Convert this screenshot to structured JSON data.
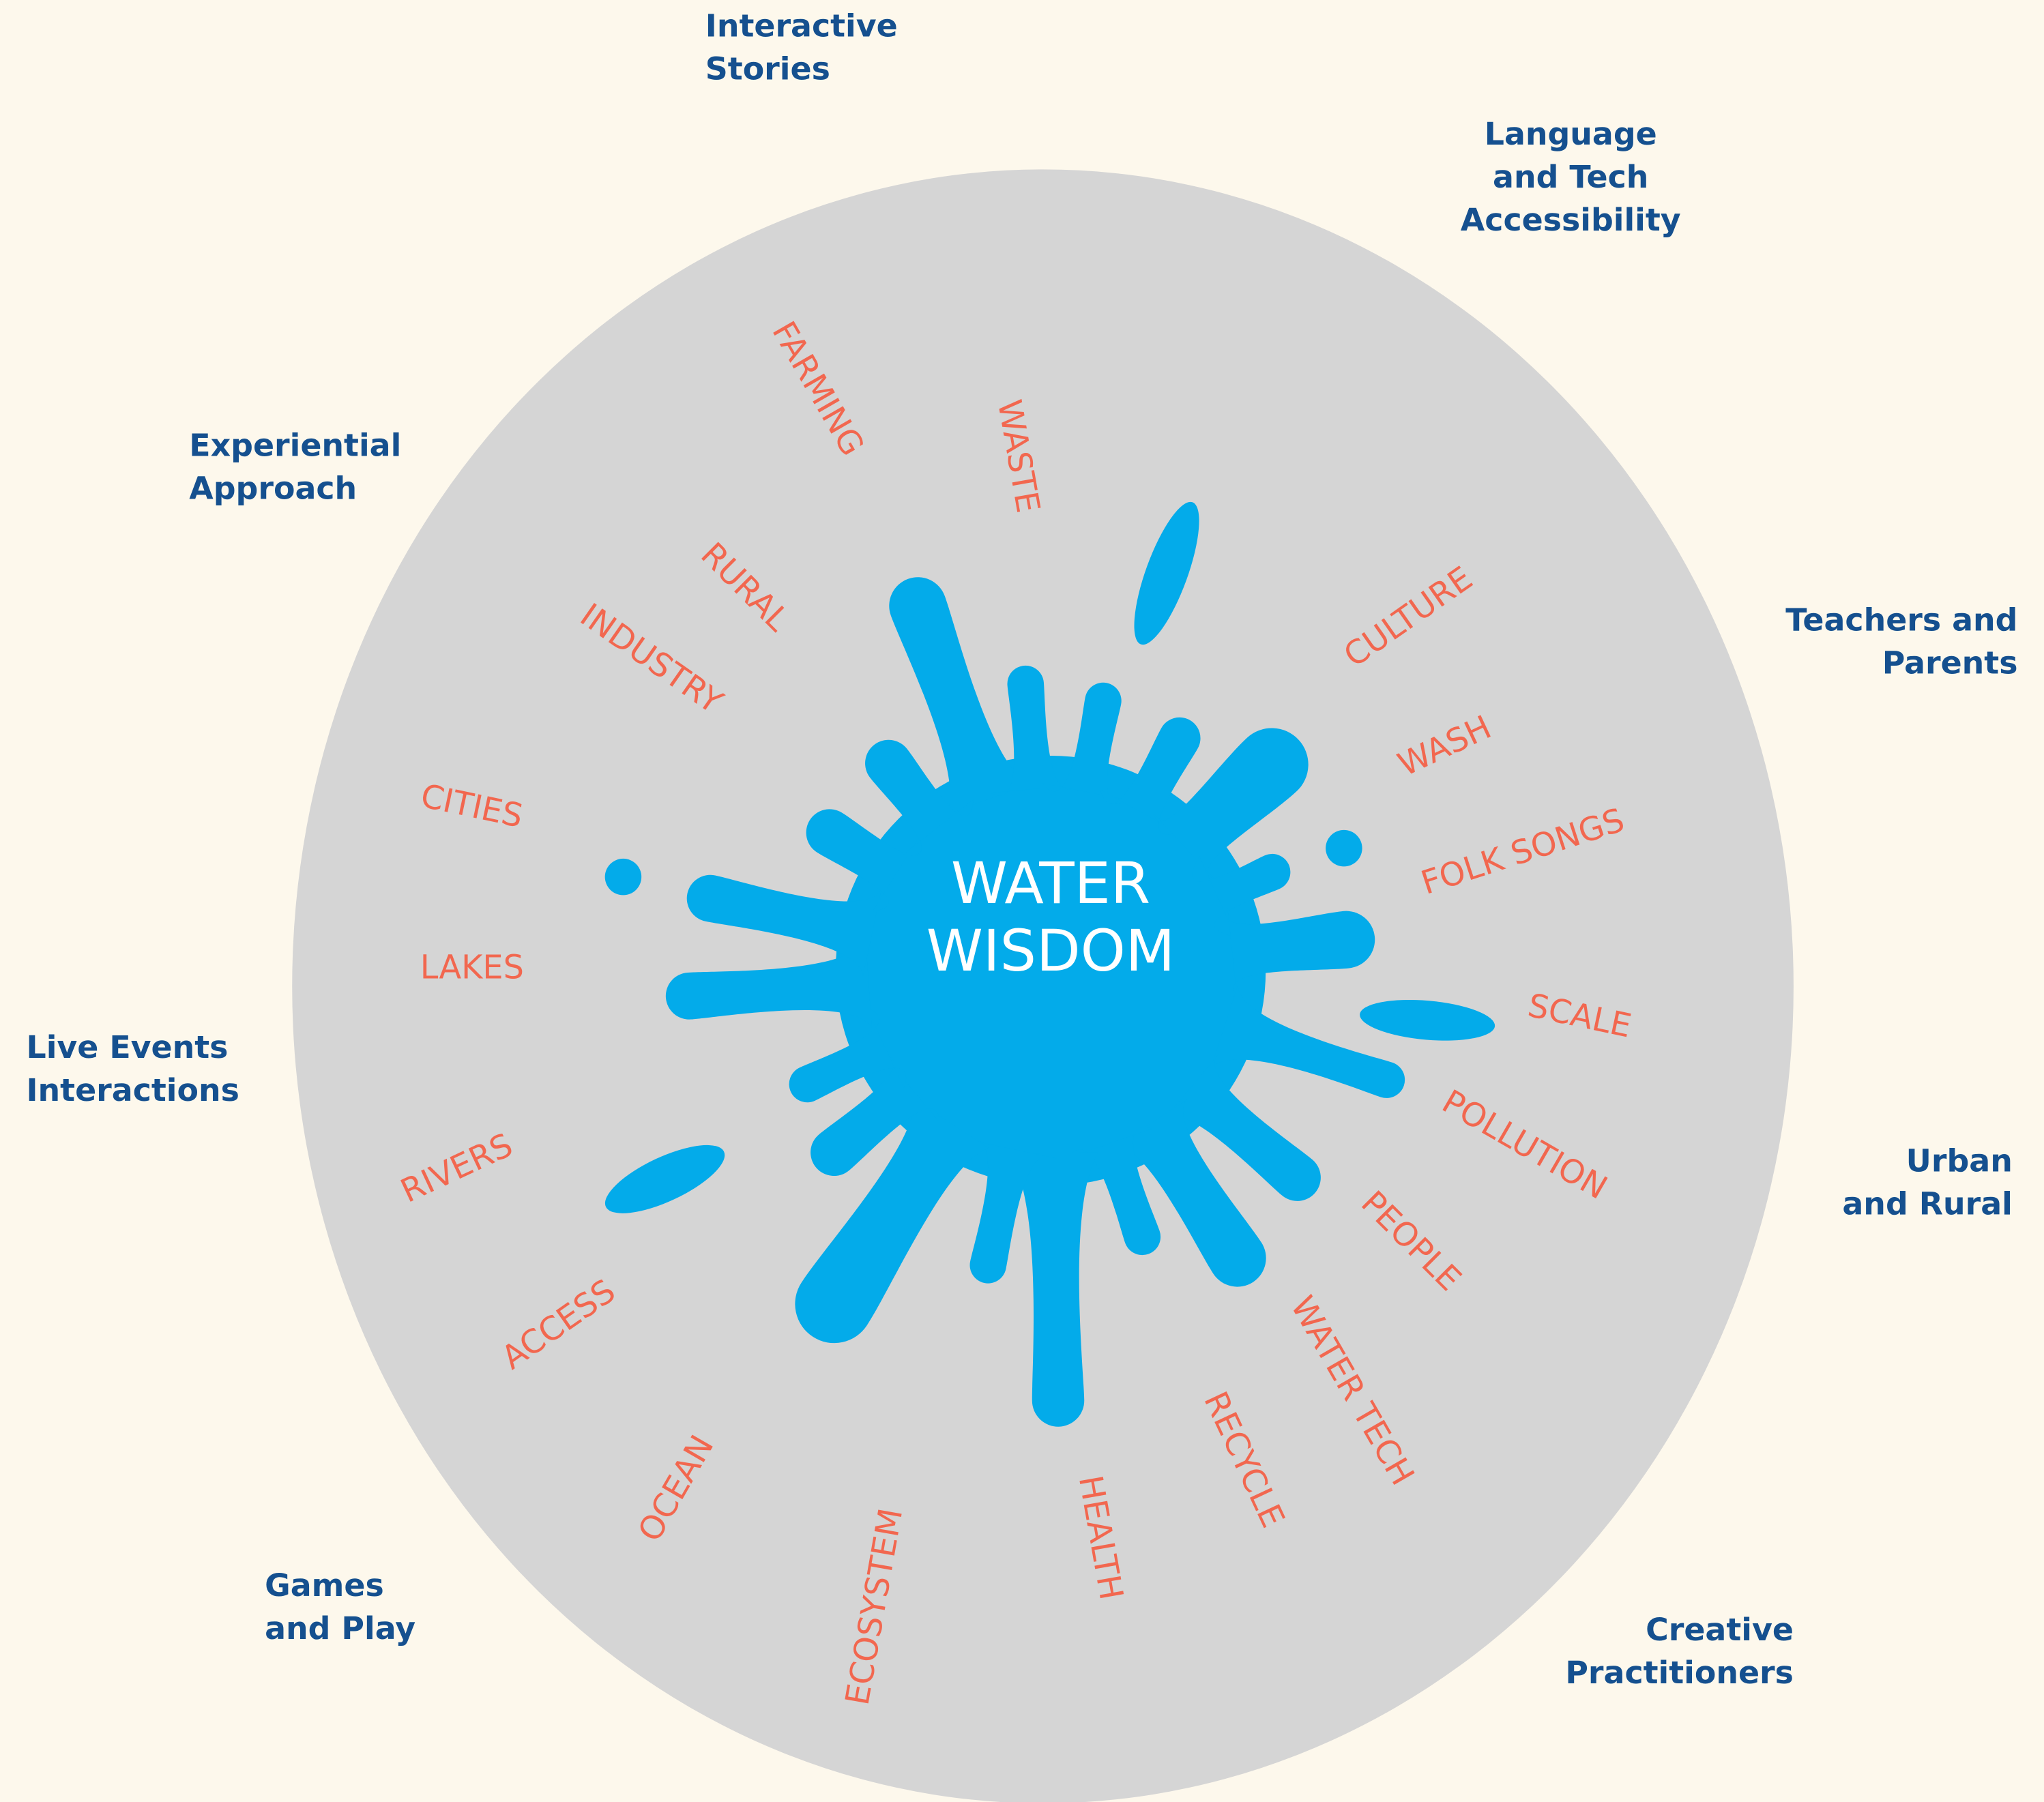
{
  "center": {
    "lines": [
      "WATER",
      "WISDOM"
    ]
  },
  "audiences": [
    {
      "lines": [
        "Interactive",
        "Stories"
      ]
    },
    {
      "lines": [
        "Language",
        "and Tech",
        "Accessibility"
      ]
    },
    {
      "lines": [
        "Experiential",
        "Approach"
      ]
    },
    {
      "lines": [
        "Teachers and",
        "Parents"
      ]
    },
    {
      "lines": [
        "Live Events",
        "Interactions"
      ]
    },
    {
      "lines": [
        "Urban",
        "and Rural"
      ]
    },
    {
      "lines": [
        "Games",
        "and Play"
      ]
    },
    {
      "lines": [
        "Creative",
        "Practitioners"
      ]
    }
  ],
  "topics": [
    "FARMING",
    "WASTE",
    "RURAL",
    "INDUSTRY",
    "CULTURE",
    "WASH",
    "FOLK SONGS",
    "CITIES",
    "LAKES",
    "SCALE",
    "POLLUTION",
    "RIVERS",
    "PEOPLE",
    "ACCESS",
    "WATER TECH",
    "OCEAN",
    "RECYCLE",
    "HEALTH",
    "ECOSYSTEM"
  ]
}
